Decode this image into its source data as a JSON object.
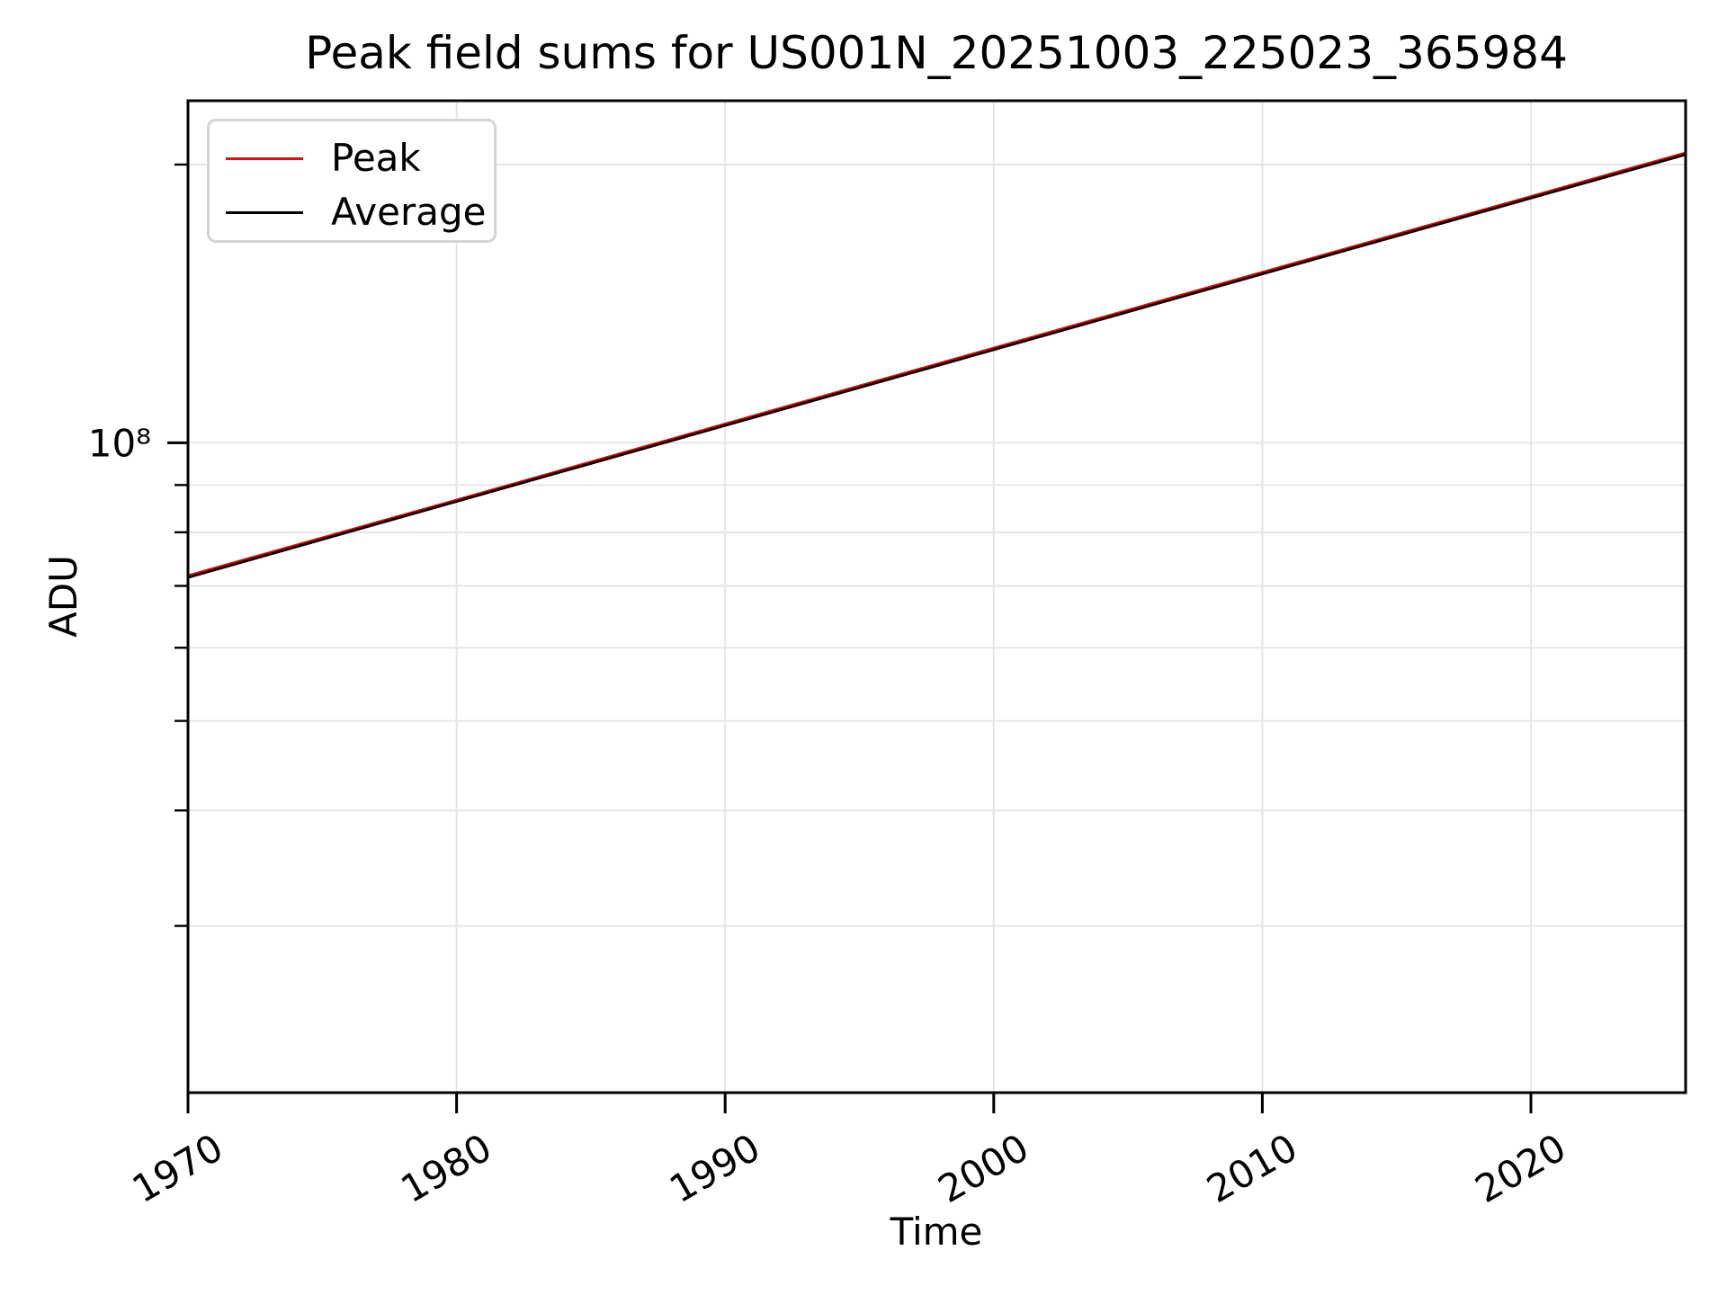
{
  "chart_data": {
    "type": "line",
    "title": "Peak field sums for US001N_20251003_225023_365984",
    "xlabel": "Time",
    "ylabel": "ADU",
    "yscale": "log",
    "grid": true,
    "legend_position": "upper left",
    "xlim": [
      1970,
      2025.76
    ],
    "ylim": [
      19800000,
      234500000
    ],
    "x_ticks": [
      1970,
      1980,
      1990,
      2000,
      2010,
      2020
    ],
    "x_tick_labels": [
      "1970",
      "1980",
      "1990",
      "2000",
      "2010",
      "2020"
    ],
    "y_major_ticks": [
      {
        "value": 100000000,
        "label": "10⁸"
      }
    ],
    "y_minor_ticks": [
      30000000,
      40000000,
      50000000,
      60000000,
      70000000,
      80000000,
      90000000,
      200000000
    ],
    "series": [
      {
        "name": "Peak",
        "color": "#ff0000",
        "x": [
          1970,
          1980,
          1990,
          2000,
          2010,
          2020,
          2025.76
        ],
        "y": [
          71800000,
          86700000,
          104800000,
          126600000,
          152900000,
          184700000,
          205900000
        ]
      },
      {
        "name": "Average",
        "color": "#000000",
        "x": [
          1970,
          1980,
          1990,
          2000,
          2010,
          2020,
          2025.76
        ],
        "y": [
          71500000,
          86400000,
          104400000,
          126100000,
          152300000,
          184000000,
          205100000
        ]
      }
    ],
    "colors": {
      "grid": "#e6e6e6",
      "spine": "#000000",
      "background": "#ffffff",
      "peak_line": "#ff0000",
      "average_line": "#000000"
    }
  }
}
